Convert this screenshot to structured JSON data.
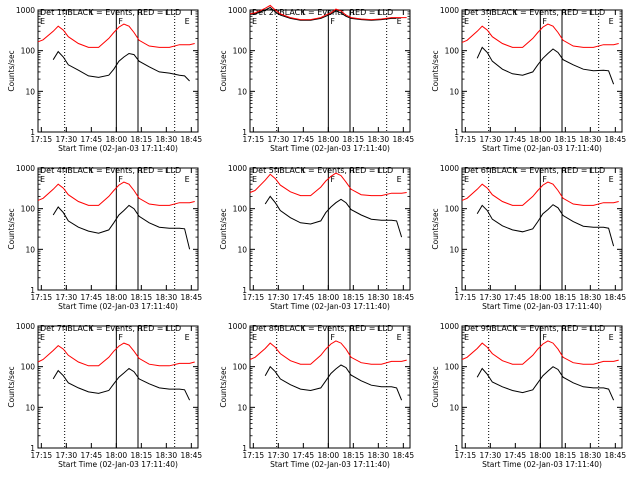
{
  "chart_data": [
    {
      "type": "line",
      "title": "Det 1f BLACK = Events, RED = LLD",
      "xlabel": "Start Time (02-Jan-03 17:11:40)",
      "ylabel": "Counts/sec",
      "xticks": [
        "17:15",
        "17:30",
        "17:45",
        "18:00",
        "18:15",
        "18:30",
        "18:45"
      ],
      "yticks": [
        "1",
        "10",
        "100",
        "1000"
      ],
      "ylim": [
        1,
        1000
      ],
      "y_scale": "log",
      "markers": [
        "E",
        "F",
        "E"
      ],
      "series": [
        {
          "color": "#000000",
          "x": [
            0,
            4,
            6,
            8,
            10,
            14,
            18,
            22,
            26,
            28,
            30,
            32,
            34,
            36,
            38,
            42,
            46,
            50,
            54,
            56,
            58
          ],
          "values": [
            null,
            60,
            95,
            70,
            45,
            33,
            24,
            22,
            25,
            35,
            55,
            70,
            85,
            80,
            55,
            40,
            30,
            28,
            25,
            24,
            18
          ]
        },
        {
          "color": "#ff0000",
          "x": [
            -2,
            0,
            4,
            6,
            8,
            10,
            14,
            18,
            22,
            26,
            28,
            30,
            32,
            34,
            36,
            38,
            42,
            46,
            50,
            54,
            58,
            60
          ],
          "values": [
            165,
            185,
            300,
            400,
            320,
            220,
            150,
            120,
            120,
            200,
            280,
            380,
            450,
            400,
            280,
            180,
            130,
            120,
            120,
            140,
            140,
            150
          ]
        }
      ]
    },
    {
      "type": "line",
      "title": "Det 2f BLACK = Events, RED = LLD",
      "xlabel": "Start Time (02-Jan-03 17:11:40)",
      "ylabel": "Counts/sec",
      "xticks": [
        "17:15",
        "17:30",
        "17:45",
        "18:00",
        "18:15",
        "18:30",
        "18:45"
      ],
      "yticks": [
        "1",
        "10",
        "100",
        "1000"
      ],
      "ylim": [
        1,
        1000
      ],
      "y_scale": "log",
      "markers": [
        "E",
        "F",
        "E"
      ],
      "series": [
        {
          "color": "#000000",
          "x": [
            -2,
            0,
            4,
            6,
            8,
            10,
            14,
            18,
            22,
            26,
            28,
            30,
            32,
            34,
            36,
            38,
            42,
            46,
            50,
            54,
            56,
            58,
            60
          ],
          "values": [
            780,
            800,
            1000,
            1150,
            900,
            750,
            620,
            560,
            560,
            620,
            700,
            800,
            950,
            850,
            700,
            620,
            580,
            560,
            580,
            620,
            620,
            null,
            null
          ]
        },
        {
          "color": "#ff0000",
          "x": [
            -2,
            0,
            4,
            6,
            8,
            10,
            14,
            18,
            22,
            26,
            28,
            30,
            32,
            34,
            36,
            38,
            42,
            46,
            50,
            54,
            58,
            60
          ],
          "values": [
            800,
            850,
            1100,
            1300,
            1000,
            800,
            650,
            580,
            580,
            650,
            750,
            850,
            1050,
            950,
            750,
            650,
            600,
            580,
            600,
            650,
            650,
            650
          ]
        }
      ]
    },
    {
      "type": "line",
      "title": "Det 3f BLACK = Events, RED = LLD",
      "xlabel": "Start Time (02-Jan-03 17:11:40)",
      "ylabel": "Counts/sec",
      "xticks": [
        "17:15",
        "17:30",
        "17:45",
        "18:00",
        "18:15",
        "18:30",
        "18:45"
      ],
      "yticks": [
        "1",
        "10",
        "100",
        "1000"
      ],
      "ylim": [
        1,
        1000
      ],
      "y_scale": "log",
      "markers": [
        "E",
        "F",
        "E"
      ],
      "series": [
        {
          "color": "#000000",
          "x": [
            0,
            4,
            6,
            8,
            10,
            14,
            18,
            22,
            26,
            28,
            30,
            32,
            34,
            36,
            38,
            42,
            46,
            50,
            54,
            56,
            58
          ],
          "values": [
            null,
            65,
            120,
            90,
            55,
            35,
            27,
            25,
            30,
            45,
            65,
            85,
            110,
            90,
            60,
            45,
            35,
            32,
            33,
            32,
            15
          ]
        },
        {
          "color": "#ff0000",
          "x": [
            -2,
            0,
            4,
            6,
            8,
            10,
            14,
            18,
            22,
            26,
            28,
            30,
            32,
            34,
            36,
            38,
            42,
            46,
            50,
            54,
            58,
            60
          ],
          "values": [
            160,
            180,
            300,
            400,
            320,
            220,
            150,
            120,
            120,
            200,
            280,
            380,
            450,
            400,
            280,
            180,
            130,
            120,
            120,
            140,
            140,
            150
          ]
        }
      ]
    },
    {
      "type": "line",
      "title": "Det 4f BLACK = Events, RED = LLD",
      "xlabel": "Start Time (02-Jan-03 17:11:40)",
      "ylabel": "Counts/sec",
      "xticks": [
        "17:15",
        "17:30",
        "17:45",
        "18:00",
        "18:15",
        "18:30",
        "18:45"
      ],
      "yticks": [
        "1",
        "10",
        "100",
        "1000"
      ],
      "ylim": [
        1,
        1000
      ],
      "y_scale": "log",
      "markers": [
        "E",
        "F",
        "E"
      ],
      "series": [
        {
          "color": "#000000",
          "x": [
            0,
            4,
            6,
            8,
            10,
            14,
            18,
            22,
            26,
            28,
            30,
            32,
            34,
            36,
            38,
            42,
            46,
            50,
            54,
            56,
            58
          ],
          "values": [
            null,
            70,
            110,
            80,
            50,
            35,
            28,
            25,
            30,
            45,
            70,
            90,
            120,
            100,
            65,
            45,
            35,
            33,
            33,
            32,
            10
          ]
        },
        {
          "color": "#ff0000",
          "x": [
            -2,
            0,
            4,
            6,
            8,
            10,
            14,
            18,
            22,
            26,
            28,
            30,
            32,
            34,
            36,
            38,
            42,
            46,
            50,
            54,
            58,
            60
          ],
          "values": [
            160,
            180,
            300,
            400,
            320,
            220,
            150,
            120,
            120,
            200,
            280,
            380,
            450,
            400,
            280,
            180,
            130,
            120,
            120,
            140,
            140,
            150
          ]
        }
      ]
    },
    {
      "type": "line",
      "title": "Det 5f BLACK = Events, RED = LLD",
      "xlabel": "Start Time (02-Jan-03 17:11:40)",
      "ylabel": "Counts/sec",
      "xticks": [
        "17:15",
        "17:30",
        "17:45",
        "18:00",
        "18:15",
        "18:30",
        "18:45"
      ],
      "yticks": [
        "1",
        "10",
        "100",
        "1000"
      ],
      "ylim": [
        1,
        1000
      ],
      "y_scale": "log",
      "markers": [
        "E",
        "F",
        "E"
      ],
      "series": [
        {
          "color": "#000000",
          "x": [
            0,
            4,
            6,
            8,
            10,
            14,
            18,
            22,
            26,
            28,
            30,
            32,
            34,
            36,
            38,
            42,
            46,
            50,
            54,
            56,
            58
          ],
          "values": [
            null,
            130,
            200,
            140,
            90,
            60,
            45,
            42,
            50,
            80,
            110,
            140,
            170,
            140,
            95,
            70,
            55,
            52,
            52,
            50,
            20
          ]
        },
        {
          "color": "#ff0000",
          "x": [
            -2,
            0,
            4,
            6,
            8,
            10,
            14,
            18,
            22,
            26,
            28,
            30,
            32,
            34,
            36,
            38,
            42,
            46,
            50,
            54,
            58,
            60
          ],
          "values": [
            250,
            280,
            500,
            700,
            550,
            380,
            260,
            210,
            210,
            340,
            480,
            620,
            750,
            650,
            450,
            300,
            220,
            210,
            210,
            240,
            240,
            250
          ]
        }
      ]
    },
    {
      "type": "line",
      "title": "Det 6f BLACK = Events, RED = LLD",
      "xlabel": "Start Time (02-Jan-03 17:11:40)",
      "ylabel": "Counts/sec",
      "xticks": [
        "17:15",
        "17:30",
        "17:45",
        "18:00",
        "18:15",
        "18:30",
        "18:45"
      ],
      "yticks": [
        "1",
        "10",
        "100",
        "1000"
      ],
      "ylim": [
        1,
        1000
      ],
      "y_scale": "log",
      "markers": [
        "E",
        "F",
        "E"
      ],
      "series": [
        {
          "color": "#000000",
          "x": [
            0,
            4,
            6,
            8,
            10,
            14,
            18,
            22,
            26,
            28,
            30,
            32,
            34,
            36,
            38,
            42,
            46,
            50,
            54,
            56,
            58
          ],
          "values": [
            null,
            75,
            120,
            90,
            55,
            38,
            30,
            27,
            32,
            48,
            75,
            95,
            125,
            105,
            68,
            48,
            37,
            35,
            35,
            33,
            12
          ]
        },
        {
          "color": "#ff0000",
          "x": [
            -2,
            0,
            4,
            6,
            8,
            10,
            14,
            18,
            22,
            26,
            28,
            30,
            32,
            34,
            36,
            38,
            42,
            46,
            50,
            54,
            58,
            60
          ],
          "values": [
            160,
            180,
            300,
            400,
            320,
            220,
            150,
            120,
            120,
            200,
            280,
            380,
            450,
            400,
            280,
            180,
            130,
            120,
            120,
            140,
            140,
            150
          ]
        }
      ]
    },
    {
      "type": "line",
      "title": "Det 7f BLACK = Events, RED = LLD",
      "xlabel": "Start Time (02-Jan-03 17:11:40)",
      "ylabel": "Counts/sec",
      "xticks": [
        "17:15",
        "17:30",
        "17:45",
        "18:00",
        "18:15",
        "18:30",
        "18:45"
      ],
      "yticks": [
        "1",
        "10",
        "100",
        "1000"
      ],
      "ylim": [
        1,
        1000
      ],
      "y_scale": "log",
      "markers": [
        "E",
        "F",
        "E"
      ],
      "series": [
        {
          "color": "#000000",
          "x": [
            0,
            4,
            6,
            8,
            10,
            14,
            18,
            22,
            26,
            28,
            30,
            32,
            34,
            36,
            38,
            42,
            46,
            50,
            54,
            56,
            58
          ],
          "values": [
            null,
            50,
            80,
            60,
            40,
            30,
            24,
            22,
            26,
            38,
            55,
            70,
            90,
            75,
            50,
            38,
            30,
            28,
            28,
            27,
            15
          ]
        },
        {
          "color": "#ff0000",
          "x": [
            -2,
            0,
            4,
            6,
            8,
            10,
            14,
            18,
            22,
            26,
            28,
            30,
            32,
            34,
            36,
            38,
            42,
            46,
            50,
            54,
            58,
            60
          ],
          "values": [
            130,
            150,
            250,
            330,
            270,
            190,
            130,
            105,
            105,
            170,
            240,
            320,
            380,
            340,
            240,
            160,
            115,
            105,
            105,
            120,
            120,
            130
          ]
        }
      ]
    },
    {
      "type": "line",
      "title": "Det 8f BLACK = Events, RED = LLD",
      "xlabel": "Start Time (02-Jan-03 17:11:40)",
      "ylabel": "Counts/sec",
      "xticks": [
        "17:15",
        "17:30",
        "17:45",
        "18:00",
        "18:15",
        "18:30",
        "18:45"
      ],
      "yticks": [
        "1",
        "10",
        "100",
        "1000"
      ],
      "ylim": [
        1,
        1000
      ],
      "y_scale": "log",
      "markers": [
        "E",
        "F",
        "E"
      ],
      "series": [
        {
          "color": "#000000",
          "x": [
            0,
            4,
            6,
            8,
            10,
            14,
            18,
            22,
            26,
            28,
            30,
            32,
            34,
            36,
            38,
            42,
            46,
            50,
            54,
            56,
            58
          ],
          "values": [
            null,
            60,
            100,
            75,
            50,
            36,
            28,
            26,
            30,
            45,
            68,
            88,
            110,
            95,
            62,
            45,
            35,
            32,
            32,
            30,
            15
          ]
        },
        {
          "color": "#ff0000",
          "x": [
            -2,
            0,
            4,
            6,
            8,
            10,
            14,
            18,
            22,
            26,
            28,
            30,
            32,
            34,
            36,
            38,
            42,
            46,
            50,
            54,
            58,
            60
          ],
          "values": [
            150,
            170,
            280,
            380,
            300,
            210,
            140,
            115,
            115,
            190,
            270,
            360,
            430,
            380,
            270,
            170,
            125,
            115,
            115,
            135,
            135,
            145
          ]
        }
      ]
    },
    {
      "type": "line",
      "title": "Det 9f BLACK = Events, RED = LLD",
      "xlabel": "Start Time (02-Jan-03 17:11:40)",
      "ylabel": "Counts/sec",
      "xticks": [
        "17:15",
        "17:30",
        "17:45",
        "18:00",
        "18:15",
        "18:30",
        "18:45"
      ],
      "yticks": [
        "1",
        "10",
        "100",
        "1000"
      ],
      "ylim": [
        1,
        1000
      ],
      "y_scale": "log",
      "markers": [
        "E",
        "F",
        "E"
      ],
      "series": [
        {
          "color": "#000000",
          "x": [
            0,
            4,
            6,
            8,
            10,
            14,
            18,
            22,
            26,
            28,
            30,
            32,
            34,
            36,
            38,
            42,
            46,
            50,
            54,
            56,
            58
          ],
          "values": [
            null,
            55,
            90,
            65,
            42,
            32,
            26,
            23,
            27,
            40,
            60,
            78,
            100,
            85,
            55,
            40,
            32,
            30,
            30,
            28,
            15
          ]
        },
        {
          "color": "#ff0000",
          "x": [
            -2,
            0,
            4,
            6,
            8,
            10,
            14,
            18,
            22,
            26,
            28,
            30,
            32,
            34,
            36,
            38,
            42,
            46,
            50,
            54,
            58,
            60
          ],
          "values": [
            150,
            170,
            280,
            380,
            300,
            210,
            140,
            115,
            115,
            190,
            270,
            360,
            430,
            380,
            270,
            170,
            125,
            115,
            115,
            135,
            135,
            145
          ]
        }
      ]
    }
  ]
}
